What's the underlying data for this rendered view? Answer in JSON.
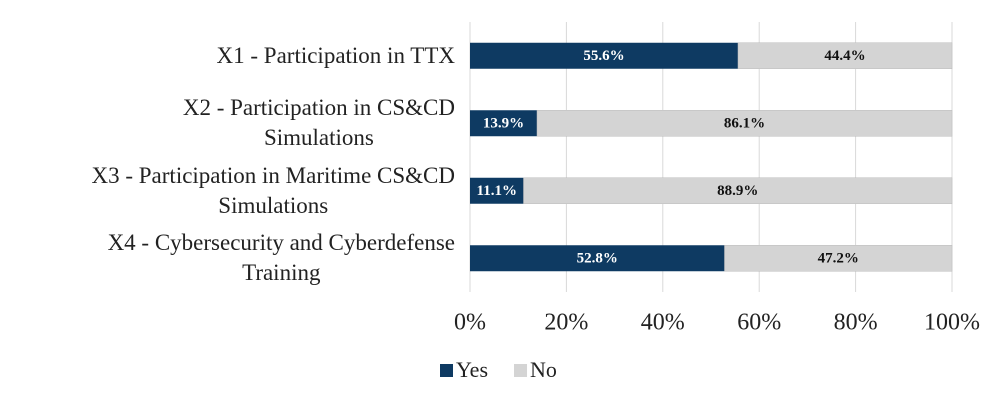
{
  "chart_data": {
    "type": "stacked_barh",
    "categories": [
      "X1 - Participation in TTX",
      "X2 - Participation in CS&CD\nSimulations",
      "X3 - Participation in Maritime CS&CD\nSimulations",
      "X4 - Cybersecurity and Cyberdefense\nTraining"
    ],
    "series": [
      {
        "name": "Yes",
        "color": "#0e3a62",
        "values": [
          55.6,
          13.9,
          11.1,
          52.8
        ],
        "value_labels": [
          "55.6%",
          "13.9%",
          "11.1%",
          "52.8%"
        ]
      },
      {
        "name": "No",
        "color": "#d4d4d4",
        "values": [
          44.4,
          86.1,
          88.9,
          47.2
        ],
        "value_labels": [
          "44.4%",
          "86.1%",
          "88.9%",
          "47.2%"
        ]
      }
    ],
    "xlim": [
      0,
      100
    ],
    "xticks": [
      {
        "value": 0,
        "label": "0%"
      },
      {
        "value": 20,
        "label": "20%"
      },
      {
        "value": 40,
        "label": "40%"
      },
      {
        "value": 60,
        "label": "60%"
      },
      {
        "value": 80,
        "label": "80%"
      },
      {
        "value": 100,
        "label": "100%"
      }
    ],
    "grid": true,
    "legend": "bottom"
  }
}
